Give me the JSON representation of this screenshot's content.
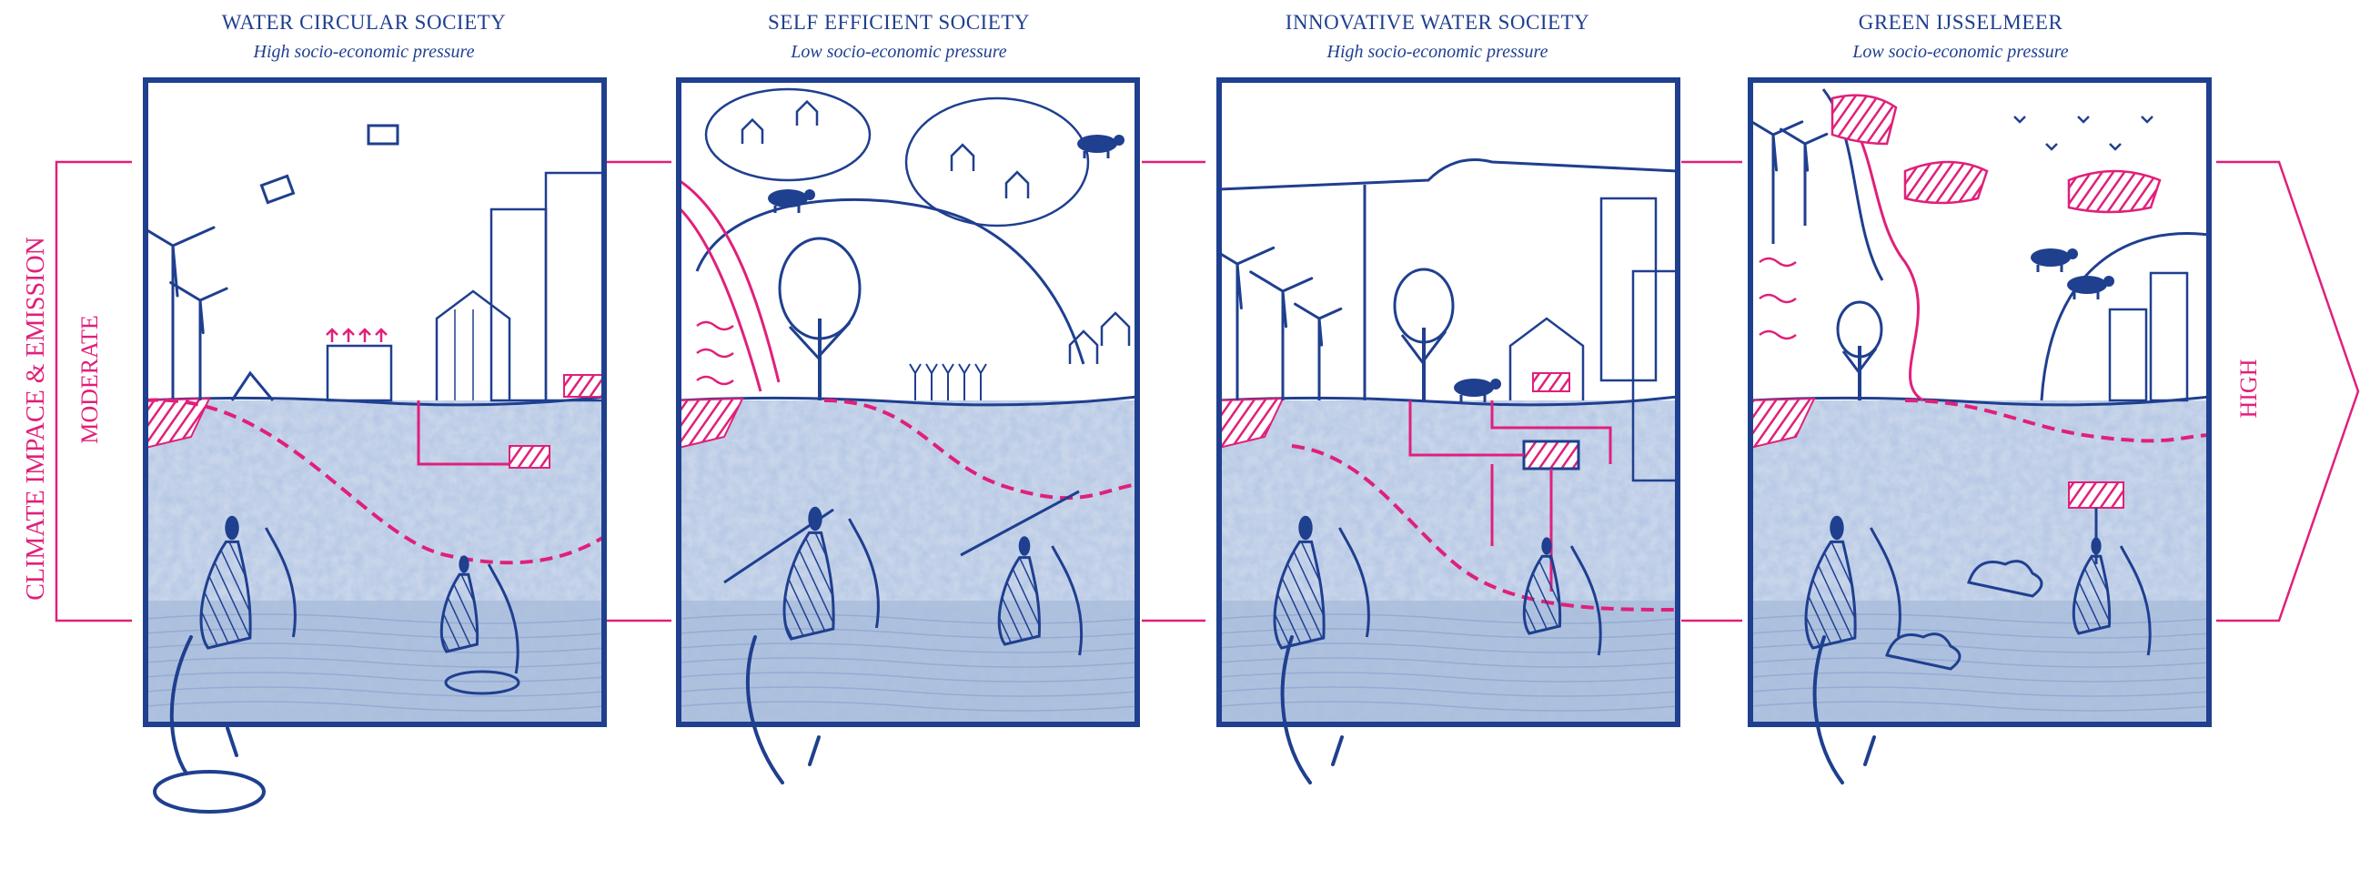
{
  "colors": {
    "blue": "#1f3f8f",
    "pink": "#e0207a",
    "paper": "#ffffff",
    "wash_light": "#c9d6ea",
    "wash_mid": "#a9bddc"
  },
  "axis": {
    "left_label": "CLIMATE IMPACE & EMISSION",
    "low_label": "MODERATE",
    "high_label": "HIGH"
  },
  "scenarios": [
    {
      "name": "WATER CIRCULAR SOCIETY",
      "pressure": "High socio-economic pressure",
      "illustration": "wind-turbines-drones-greenhouse-city"
    },
    {
      "name": "SELF EFFICIENT SOCIETY",
      "pressure": "Low socio-economic pressure",
      "illustration": "hills-villages-cows-crops"
    },
    {
      "name": "INNOVATIVE WATER SOCIETY",
      "pressure": "High socio-economic pressure",
      "illustration": "dike-city-wind-turbines-pipes"
    },
    {
      "name": "GREEN IJSSELMEER",
      "pressure": "Low socio-economic pressure",
      "illustration": "floating-islands-birds-nature"
    }
  ]
}
